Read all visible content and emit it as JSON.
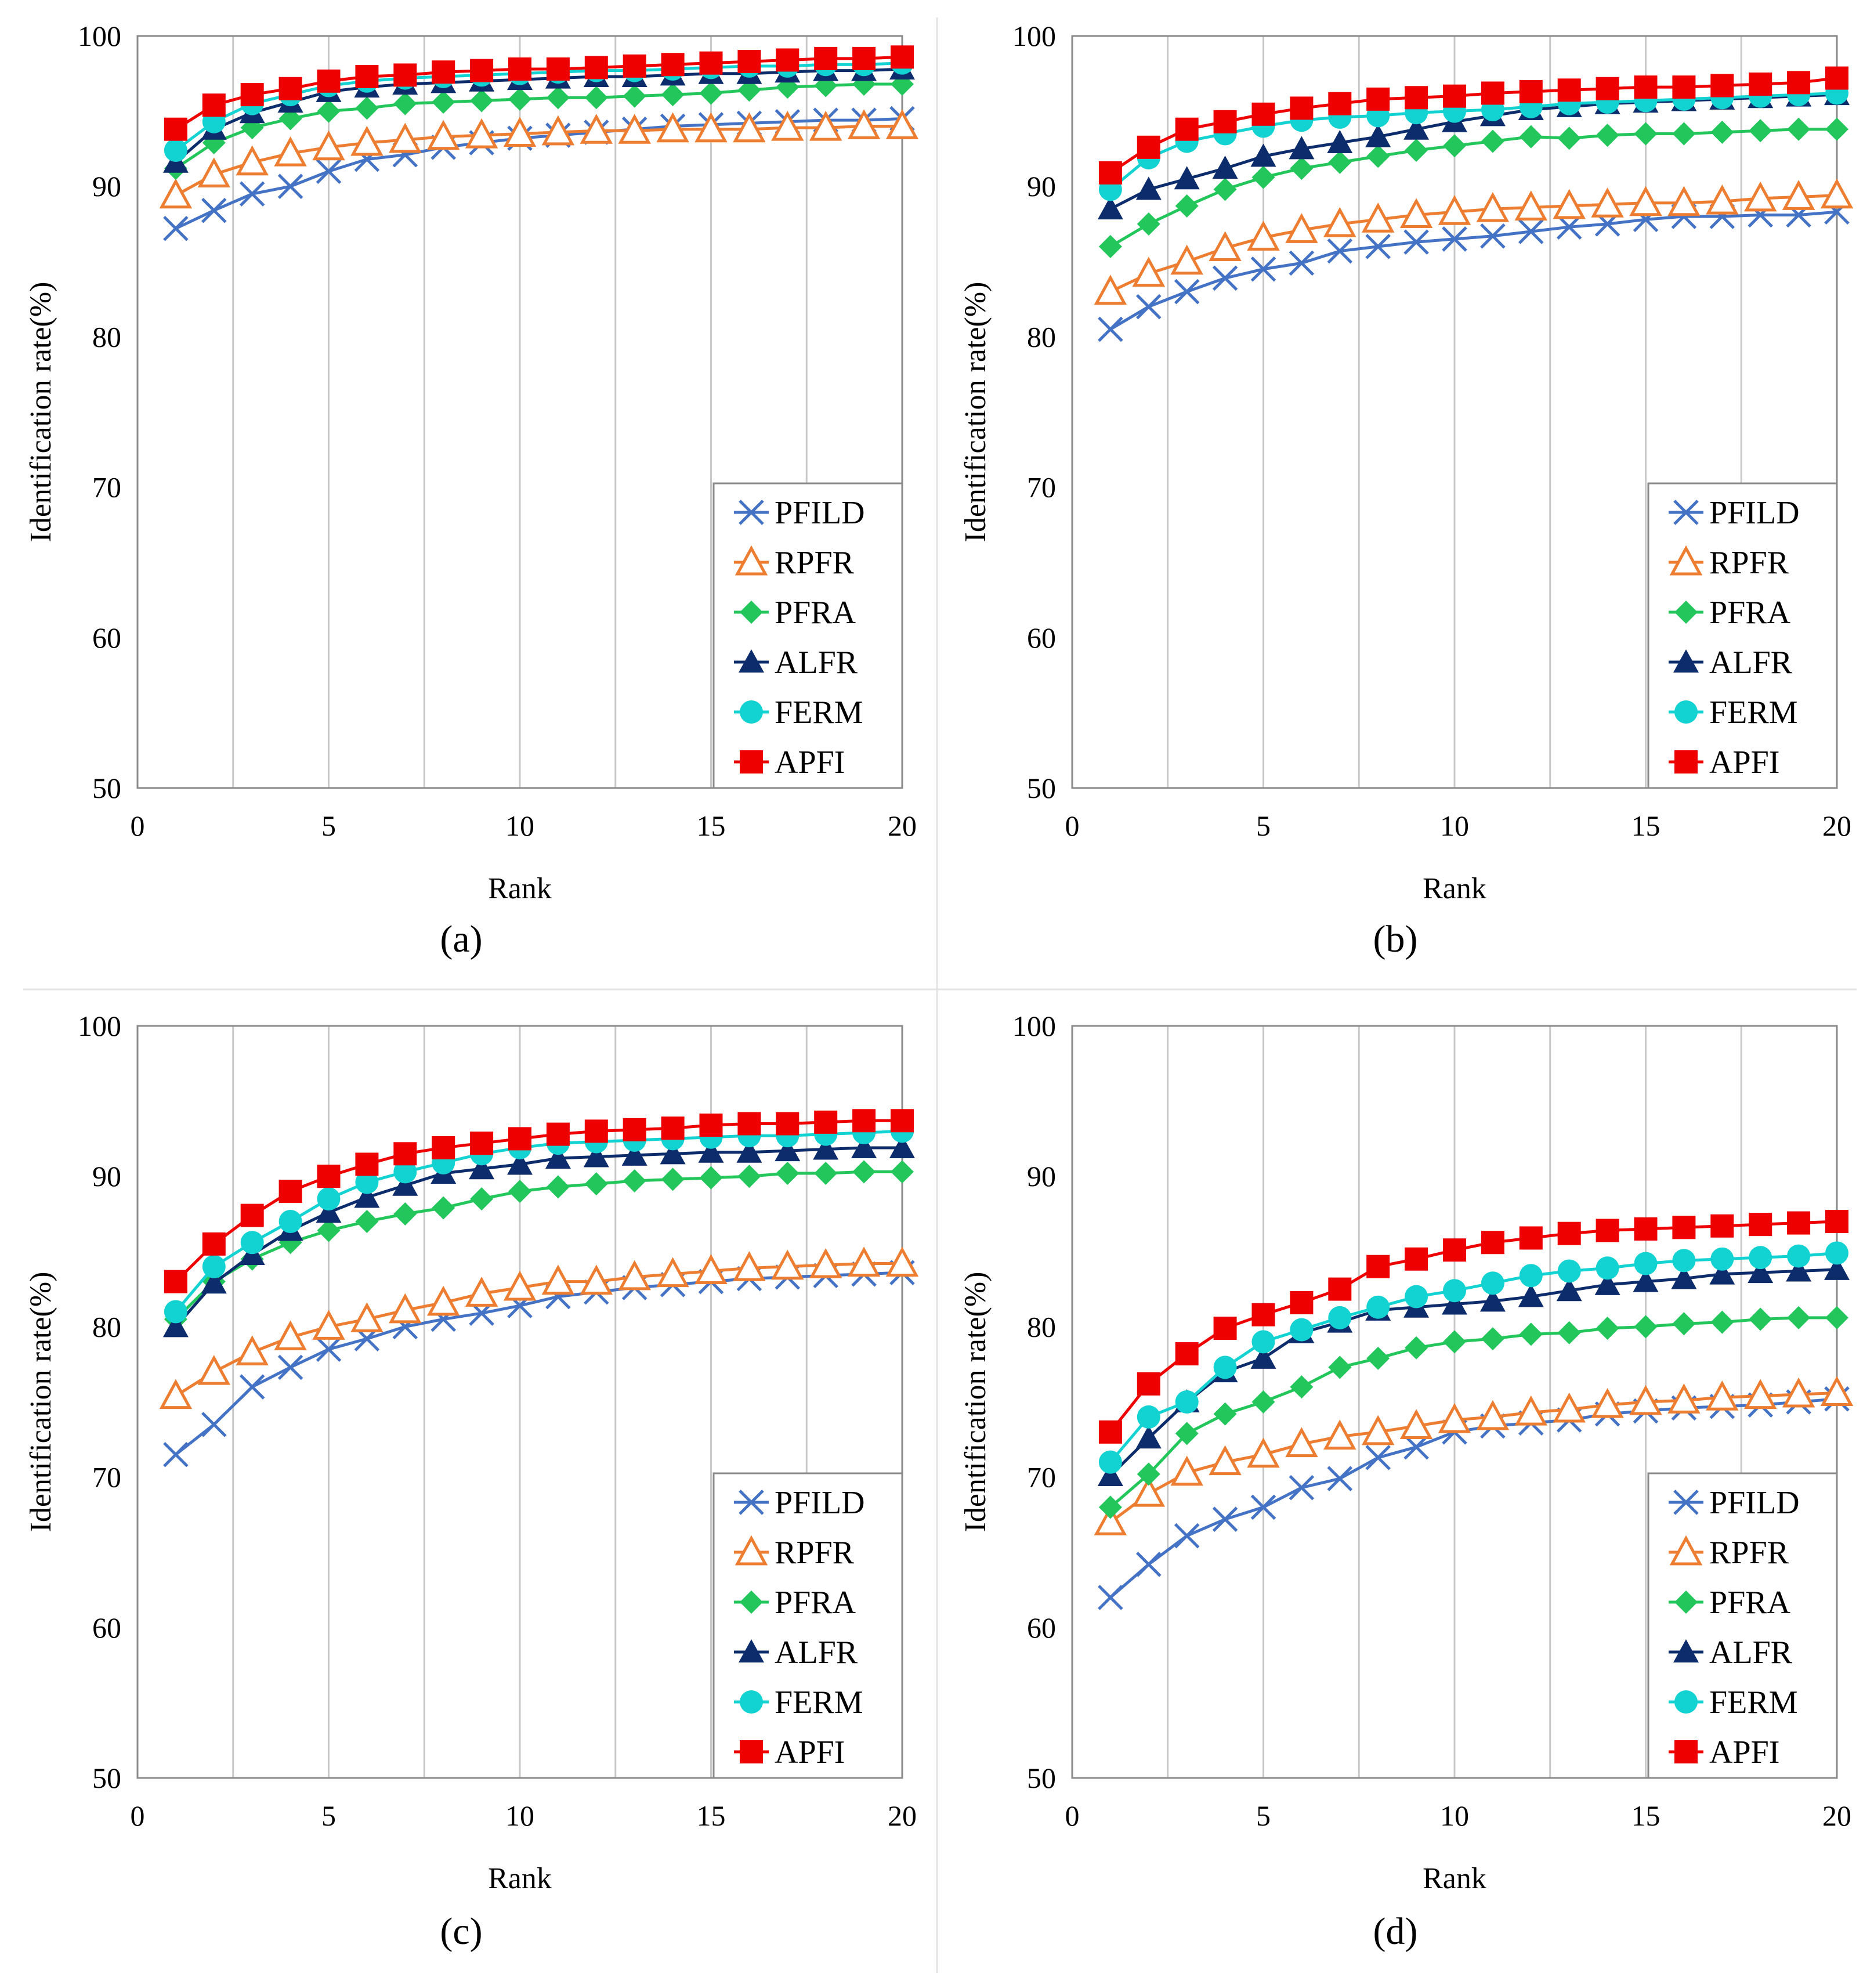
{
  "figure": {
    "separator_visible": true
  },
  "chart_data": [
    {
      "type": "line",
      "caption": "(a)",
      "xlabel": "Rank",
      "ylabel": "Identification rate(%)",
      "xlim": [
        0,
        20
      ],
      "ylim": [
        50,
        100
      ],
      "xticks": [
        0,
        5,
        10,
        15,
        20
      ],
      "yticks": [
        50,
        60,
        70,
        80,
        90,
        100
      ],
      "grid": "vertical",
      "legend_position": "bottom-right",
      "x": [
        1,
        2,
        3,
        4,
        5,
        6,
        7,
        8,
        9,
        10,
        11,
        12,
        13,
        14,
        15,
        16,
        17,
        18,
        19,
        20
      ],
      "series": [
        {
          "name": "PFILD",
          "color": "#4472c4",
          "marker": "x",
          "values": [
            87.2,
            88.4,
            89.5,
            90.0,
            91.0,
            91.8,
            92.1,
            92.6,
            92.9,
            93.2,
            93.4,
            93.6,
            93.8,
            94.0,
            94.1,
            94.2,
            94.3,
            94.4,
            94.4,
            94.5
          ]
        },
        {
          "name": "RPFR",
          "color": "#ed7d31",
          "marker": "triangle-open",
          "values": [
            89.4,
            90.8,
            91.6,
            92.2,
            92.6,
            92.9,
            93.1,
            93.3,
            93.4,
            93.5,
            93.6,
            93.7,
            93.7,
            93.8,
            93.8,
            93.8,
            93.9,
            93.9,
            94.0,
            94.0
          ]
        },
        {
          "name": "PFRA",
          "color": "#22c65a",
          "marker": "diamond",
          "values": [
            91.2,
            92.9,
            93.9,
            94.5,
            95.0,
            95.2,
            95.5,
            95.6,
            95.7,
            95.8,
            95.9,
            95.9,
            96.0,
            96.1,
            96.2,
            96.4,
            96.6,
            96.7,
            96.8,
            96.8
          ]
        },
        {
          "name": "ALFR",
          "color": "#0d2c6b",
          "marker": "triangle",
          "values": [
            91.6,
            93.8,
            94.9,
            95.6,
            96.3,
            96.6,
            96.8,
            96.9,
            97.0,
            97.1,
            97.2,
            97.3,
            97.3,
            97.4,
            97.5,
            97.5,
            97.6,
            97.7,
            97.7,
            97.8
          ]
        },
        {
          "name": "FERM",
          "color": "#12d2d2",
          "marker": "circle",
          "values": [
            92.4,
            94.3,
            95.5,
            96.1,
            96.7,
            97.0,
            97.2,
            97.3,
            97.4,
            97.5,
            97.6,
            97.7,
            97.7,
            97.8,
            97.9,
            98.0,
            98.0,
            98.1,
            98.1,
            98.2
          ]
        },
        {
          "name": "APFI",
          "color": "#ee0000",
          "marker": "square",
          "values": [
            93.8,
            95.4,
            96.1,
            96.5,
            97.0,
            97.3,
            97.4,
            97.6,
            97.7,
            97.8,
            97.8,
            97.9,
            98.0,
            98.1,
            98.2,
            98.3,
            98.4,
            98.5,
            98.5,
            98.6
          ]
        }
      ]
    },
    {
      "type": "line",
      "caption": "(b)",
      "xlabel": "Rank",
      "ylabel": "Identification rate(%)",
      "xlim": [
        0,
        20
      ],
      "ylim": [
        50,
        100
      ],
      "xticks": [
        0,
        5,
        10,
        15,
        20
      ],
      "yticks": [
        50,
        60,
        70,
        80,
        90,
        100
      ],
      "grid": "vertical",
      "legend_position": "bottom-right",
      "x": [
        1,
        2,
        3,
        4,
        5,
        6,
        7,
        8,
        9,
        10,
        11,
        12,
        13,
        14,
        15,
        16,
        17,
        18,
        19,
        20
      ],
      "series": [
        {
          "name": "PFILD",
          "color": "#4472c4",
          "marker": "x",
          "values": [
            80.5,
            82.0,
            83.0,
            83.9,
            84.5,
            84.9,
            85.7,
            86.0,
            86.3,
            86.5,
            86.7,
            87.0,
            87.3,
            87.5,
            87.8,
            88.0,
            88.0,
            88.1,
            88.1,
            88.3
          ]
        },
        {
          "name": "RPFR",
          "color": "#ed7d31",
          "marker": "triangle-open",
          "values": [
            83.0,
            84.2,
            85.0,
            85.9,
            86.6,
            87.1,
            87.5,
            87.8,
            88.1,
            88.3,
            88.5,
            88.6,
            88.7,
            88.8,
            88.9,
            88.9,
            89.0,
            89.2,
            89.3,
            89.4
          ]
        },
        {
          "name": "PFRA",
          "color": "#22c65a",
          "marker": "diamond",
          "values": [
            86.0,
            87.5,
            88.7,
            89.8,
            90.6,
            91.2,
            91.6,
            92.0,
            92.4,
            92.7,
            93.0,
            93.3,
            93.2,
            93.4,
            93.5,
            93.5,
            93.6,
            93.7,
            93.8,
            93.8
          ]
        },
        {
          "name": "ALFR",
          "color": "#0d2c6b",
          "marker": "triangle",
          "values": [
            88.5,
            89.8,
            90.5,
            91.2,
            92.0,
            92.5,
            92.9,
            93.3,
            93.8,
            94.3,
            94.7,
            95.1,
            95.3,
            95.5,
            95.6,
            95.7,
            95.8,
            95.9,
            96.0,
            96.1
          ]
        },
        {
          "name": "FERM",
          "color": "#12d2d2",
          "marker": "circle",
          "values": [
            89.8,
            91.9,
            93.0,
            93.5,
            94.0,
            94.4,
            94.6,
            94.7,
            94.9,
            95.0,
            95.1,
            95.3,
            95.5,
            95.6,
            95.7,
            95.8,
            95.9,
            96.0,
            96.1,
            96.2
          ]
        },
        {
          "name": "APFI",
          "color": "#ee0000",
          "marker": "square",
          "values": [
            90.9,
            92.6,
            93.8,
            94.3,
            94.8,
            95.2,
            95.5,
            95.8,
            95.9,
            96.0,
            96.2,
            96.3,
            96.4,
            96.5,
            96.6,
            96.6,
            96.7,
            96.8,
            96.9,
            97.2
          ]
        }
      ]
    },
    {
      "type": "line",
      "caption": "(c)",
      "xlabel": "Rank",
      "ylabel": "Identification rate(%)",
      "xlim": [
        0,
        20
      ],
      "ylim": [
        50,
        100
      ],
      "xticks": [
        0,
        5,
        10,
        15,
        20
      ],
      "yticks": [
        50,
        60,
        70,
        80,
        90,
        100
      ],
      "grid": "vertical",
      "legend_position": "bottom-right",
      "x": [
        1,
        2,
        3,
        4,
        5,
        6,
        7,
        8,
        9,
        10,
        11,
        12,
        13,
        14,
        15,
        16,
        17,
        18,
        19,
        20
      ],
      "series": [
        {
          "name": "PFILD",
          "color": "#4472c4",
          "marker": "x",
          "values": [
            71.5,
            73.5,
            76.0,
            77.3,
            78.5,
            79.2,
            80.0,
            80.5,
            80.9,
            81.4,
            82.0,
            82.3,
            82.6,
            82.8,
            83.0,
            83.2,
            83.3,
            83.4,
            83.5,
            83.6
          ]
        },
        {
          "name": "RPFR",
          "color": "#ed7d31",
          "marker": "triangle-open",
          "values": [
            75.4,
            77.0,
            78.3,
            79.3,
            80.0,
            80.5,
            81.1,
            81.6,
            82.2,
            82.6,
            83.0,
            83.0,
            83.3,
            83.5,
            83.7,
            83.9,
            84.0,
            84.1,
            84.2,
            84.2
          ]
        },
        {
          "name": "PFRA",
          "color": "#22c65a",
          "marker": "diamond",
          "values": [
            80.5,
            83.0,
            84.5,
            85.6,
            86.4,
            87.0,
            87.5,
            87.9,
            88.5,
            89.0,
            89.3,
            89.5,
            89.7,
            89.8,
            89.9,
            90.0,
            90.2,
            90.2,
            90.3,
            90.3
          ]
        },
        {
          "name": "ALFR",
          "color": "#0d2c6b",
          "marker": "triangle",
          "values": [
            80.0,
            82.9,
            84.8,
            86.4,
            87.6,
            88.6,
            89.4,
            90.2,
            90.5,
            90.8,
            91.2,
            91.3,
            91.4,
            91.5,
            91.6,
            91.6,
            91.7,
            91.8,
            91.9,
            91.9
          ]
        },
        {
          "name": "FERM",
          "color": "#12d2d2",
          "marker": "circle",
          "values": [
            81.0,
            84.0,
            85.6,
            87.0,
            88.5,
            89.6,
            90.3,
            90.9,
            91.5,
            91.9,
            92.2,
            92.3,
            92.4,
            92.5,
            92.6,
            92.7,
            92.7,
            92.8,
            92.9,
            93.0
          ]
        },
        {
          "name": "APFI",
          "color": "#ee0000",
          "marker": "square",
          "values": [
            83.0,
            85.5,
            87.4,
            89.0,
            90.0,
            90.8,
            91.5,
            91.9,
            92.2,
            92.5,
            92.8,
            93.0,
            93.1,
            93.2,
            93.4,
            93.5,
            93.5,
            93.6,
            93.7,
            93.7
          ]
        }
      ]
    },
    {
      "type": "line",
      "caption": "(d)",
      "xlabel": "Rank",
      "ylabel": "Identification rate(%)",
      "xlim": [
        0,
        20
      ],
      "ylim": [
        50,
        100
      ],
      "xticks": [
        0,
        5,
        10,
        15,
        20
      ],
      "yticks": [
        50,
        60,
        70,
        80,
        90,
        100
      ],
      "grid": "vertical",
      "legend_position": "bottom-right",
      "x": [
        1,
        2,
        3,
        4,
        5,
        6,
        7,
        8,
        9,
        10,
        11,
        12,
        13,
        14,
        15,
        16,
        17,
        18,
        19,
        20
      ],
      "series": [
        {
          "name": "PFILD",
          "color": "#4472c4",
          "marker": "x",
          "values": [
            62.0,
            64.2,
            66.1,
            67.2,
            68.0,
            69.3,
            69.9,
            71.3,
            72.0,
            73.0,
            73.4,
            73.6,
            73.8,
            74.2,
            74.4,
            74.6,
            74.7,
            74.8,
            75.0,
            75.2
          ]
        },
        {
          "name": "RPFR",
          "color": "#ed7d31",
          "marker": "triangle-open",
          "values": [
            67.0,
            68.9,
            70.3,
            71.0,
            71.5,
            72.2,
            72.7,
            73.0,
            73.4,
            73.8,
            74.0,
            74.3,
            74.5,
            74.8,
            75.0,
            75.1,
            75.3,
            75.4,
            75.5,
            75.6
          ]
        },
        {
          "name": "PFRA",
          "color": "#22c65a",
          "marker": "diamond",
          "values": [
            68.0,
            70.2,
            72.9,
            74.2,
            75.0,
            76.0,
            77.3,
            77.9,
            78.6,
            79.0,
            79.2,
            79.5,
            79.6,
            79.9,
            80.0,
            80.2,
            80.3,
            80.5,
            80.6,
            80.6
          ]
        },
        {
          "name": "ALFR",
          "color": "#0d2c6b",
          "marker": "triangle",
          "values": [
            70.1,
            72.6,
            75.0,
            77.0,
            77.9,
            79.6,
            80.3,
            81.1,
            81.3,
            81.5,
            81.7,
            82.0,
            82.4,
            82.8,
            83.0,
            83.2,
            83.5,
            83.6,
            83.7,
            83.8
          ]
        },
        {
          "name": "FERM",
          "color": "#12d2d2",
          "marker": "circle",
          "values": [
            71.0,
            74.0,
            75.0,
            77.3,
            79.0,
            79.8,
            80.6,
            81.3,
            82.0,
            82.4,
            82.9,
            83.4,
            83.7,
            83.9,
            84.2,
            84.4,
            84.5,
            84.6,
            84.7,
            84.9
          ]
        },
        {
          "name": "APFI",
          "color": "#ee0000",
          "marker": "square",
          "values": [
            73.0,
            76.2,
            78.2,
            79.9,
            80.8,
            81.6,
            82.5,
            84.0,
            84.5,
            85.1,
            85.6,
            85.9,
            86.2,
            86.4,
            86.5,
            86.6,
            86.7,
            86.8,
            86.9,
            87.0
          ]
        }
      ]
    }
  ]
}
